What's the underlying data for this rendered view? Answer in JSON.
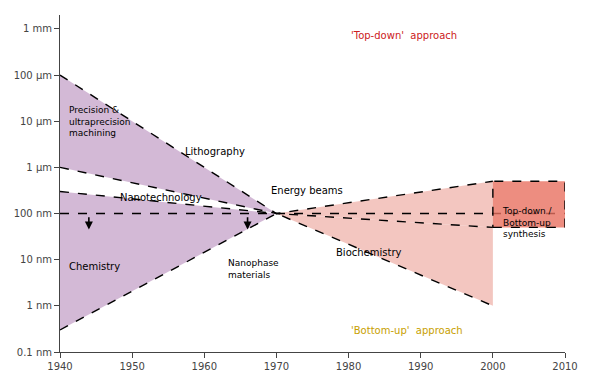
{
  "chart_data": {
    "type": "line",
    "log": "y",
    "grid": false,
    "xlim": [
      1940,
      2010
    ],
    "ylim": [
      1e-10,
      0.002
    ],
    "xticks": [
      1940,
      1950,
      1960,
      1970,
      1980,
      1990,
      2000,
      2010
    ],
    "yticks": [
      {
        "value": 1e-10,
        "label": "0.1 nm"
      },
      {
        "value": 1e-09,
        "label": "1 nm"
      },
      {
        "value": 1e-08,
        "label": "10 nm"
      },
      {
        "value": 1e-07,
        "label": "100 nm"
      },
      {
        "value": 1e-06,
        "label": "1 μm"
      },
      {
        "value": 1e-05,
        "label": "10 μm"
      },
      {
        "value": 0.0001,
        "label": "100 μm"
      },
      {
        "value": 0.001,
        "label": "1 mm"
      }
    ],
    "series": [
      {
        "type": "area",
        "color": "#c8a8cc",
        "x": [
          1940,
          1970,
          1940
        ],
        "values": [
          0.0001,
          1e-07,
          1e-06
        ]
      },
      {
        "type": "area",
        "color": "#f0b8b0",
        "x": [
          1970,
          2000,
          2000
        ],
        "values": [
          1e-07,
          5e-07,
          5e-08
        ]
      },
      {
        "type": "area",
        "color": "#c8a8cc",
        "x": [
          1940,
          1970,
          1940
        ],
        "values": [
          3e-07,
          1e-07,
          3e-10
        ]
      },
      {
        "type": "area",
        "color": "#f0b8b0",
        "x": [
          1970,
          2000,
          2000
        ],
        "values": [
          1e-07,
          5e-08,
          1e-09
        ]
      },
      {
        "type": "line",
        "color": "#000000",
        "line_style": "dashed",
        "x": [
          1940,
          1970,
          2000
        ],
        "values": [
          0.0001,
          1e-07,
          5e-07
        ]
      },
      {
        "type": "line",
        "color": "#000000",
        "line_style": "dashed",
        "x": [
          1940,
          1970,
          2000
        ],
        "values": [
          1e-06,
          1e-07,
          5e-08
        ]
      },
      {
        "type": "line",
        "color": "#000000",
        "line_style": "dashed",
        "x": [
          1940,
          1970
        ],
        "values": [
          3e-07,
          1e-07
        ]
      },
      {
        "type": "line",
        "color": "#000000",
        "line_style": "dashed",
        "x": [
          1940,
          1970,
          2000
        ],
        "values": [
          3e-10,
          1e-07,
          1e-09
        ]
      },
      {
        "type": "line",
        "color": "#000000",
        "line_style": "dashed",
        "x": [
          1940,
          2010
        ],
        "values": [
          1e-07,
          1e-07
        ]
      },
      {
        "type": "area",
        "color": "#e87060",
        "x": [
          2000,
          2010,
          2010,
          2000
        ],
        "values": [
          5e-08,
          5e-08,
          5e-07,
          5e-07
        ]
      },
      {
        "type": "line",
        "color": "#000000",
        "line_style": "dashed",
        "x": [
          2000,
          2010,
          2010,
          2000,
          2000
        ],
        "values": [
          5e-08,
          5e-08,
          5e-07,
          5e-07,
          5e-08
        ]
      },
      {
        "type": "arrow",
        "color": "#000000",
        "x": [
          1944,
          1944
        ],
        "values": [
          9e-08,
          4.5e-08
        ]
      },
      {
        "type": "arrow",
        "color": "#000000",
        "x": [
          1966,
          1966
        ],
        "values": [
          9e-08,
          4.5e-08
        ]
      }
    ],
    "annotations": [
      {
        "text": "'Top-down'  approach",
        "x": 1980,
        "y": 0.0005,
        "color": "#cc2020"
      },
      {
        "text": "'Bottom-up'  approach",
        "x": 1980,
        "y": 2e-10,
        "color": "#c8a000"
      },
      {
        "text": "Nanotechnology",
        "x": 1948,
        "y": 1.5e-07,
        "color": "#000000"
      },
      {
        "text": "Precision &\nultraprecision\nmachining",
        "x": 1941,
        "y": 2.5e-05,
        "color": "#000000"
      },
      {
        "text": "Lithography",
        "x": 1957,
        "y": 1.5e-06,
        "color": "#000000"
      },
      {
        "text": "Energy beams",
        "x": 1969,
        "y": 2.2e-07,
        "color": "#000000"
      },
      {
        "text": "Chemistry",
        "x": 1941,
        "y": 5e-09,
        "color": "#000000"
      },
      {
        "text": "Nanophase\nmaterials",
        "x": 1963,
        "y": 1.2e-08,
        "color": "#000000"
      },
      {
        "text": "Biochemistry",
        "x": 1978,
        "y": 1e-08,
        "color": "#000000"
      },
      {
        "text": "Top-down /\nBottom-up\nsynthesis",
        "x": 2001,
        "y": 1.6e-07,
        "color": "#000000"
      }
    ]
  }
}
